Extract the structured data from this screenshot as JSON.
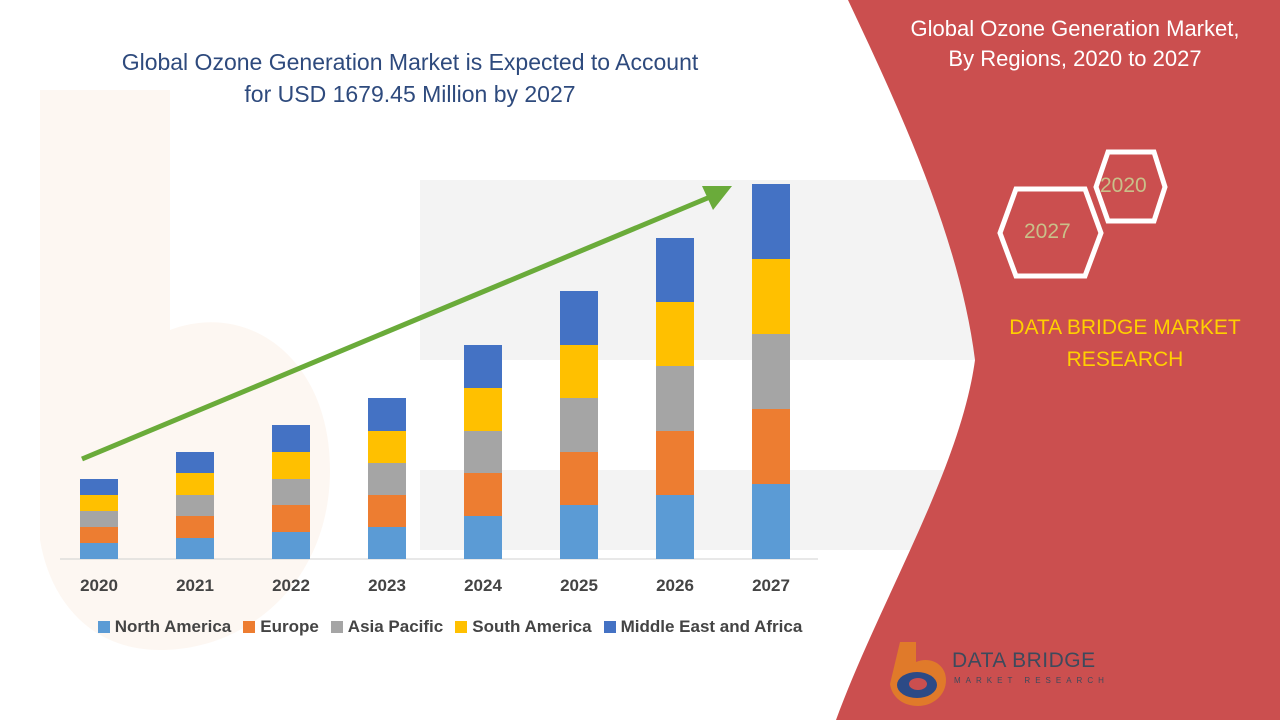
{
  "header": {
    "chart_title_line1": "Global Ozone Generation Market is Expected to Account",
    "chart_title_line2": "for USD 1679.45 Million by 2027",
    "right_title_line1": "Global Ozone Generation Market,",
    "right_title_line2": "By Regions, 2020 to 2027"
  },
  "badges": {
    "hex_2020": "2020",
    "hex_2027": "2027"
  },
  "brand": {
    "line1": "DATA BRIDGE MARKET",
    "line2": "RESEARCH",
    "logo_name": "DATA BRIDGE",
    "logo_sub": "MARKET RESEARCH"
  },
  "colors": {
    "panel": "#cb4f4f",
    "title": "#2e4a7d",
    "accent_yellow": "#ffd000",
    "arrow": "#6aab3a"
  },
  "chart_data": {
    "type": "bar",
    "stacked": true,
    "categories": [
      "2020",
      "2021",
      "2022",
      "2023",
      "2024",
      "2025",
      "2026",
      "2027"
    ],
    "series": [
      {
        "name": "North America",
        "color": "#5b9bd5",
        "values": [
          16,
          21,
          27,
          32,
          43,
          54,
          64,
          75
        ]
      },
      {
        "name": "Europe",
        "color": "#ed7d31",
        "values": [
          16,
          22,
          27,
          32,
          43,
          53,
          64,
          75
        ]
      },
      {
        "name": "Asia Pacific",
        "color": "#a5a5a5",
        "values": [
          16,
          21,
          26,
          32,
          42,
          54,
          65,
          75
        ]
      },
      {
        "name": "South America",
        "color": "#ffc000",
        "values": [
          16,
          22,
          27,
          32,
          43,
          53,
          64,
          75
        ]
      },
      {
        "name": "Middle East and Africa",
        "color": "#4472c4",
        "values": [
          16,
          21,
          27,
          33,
          43,
          54,
          64,
          75
        ]
      }
    ],
    "legend_position": "bottom",
    "grid": false,
    "trend_arrow": true
  }
}
